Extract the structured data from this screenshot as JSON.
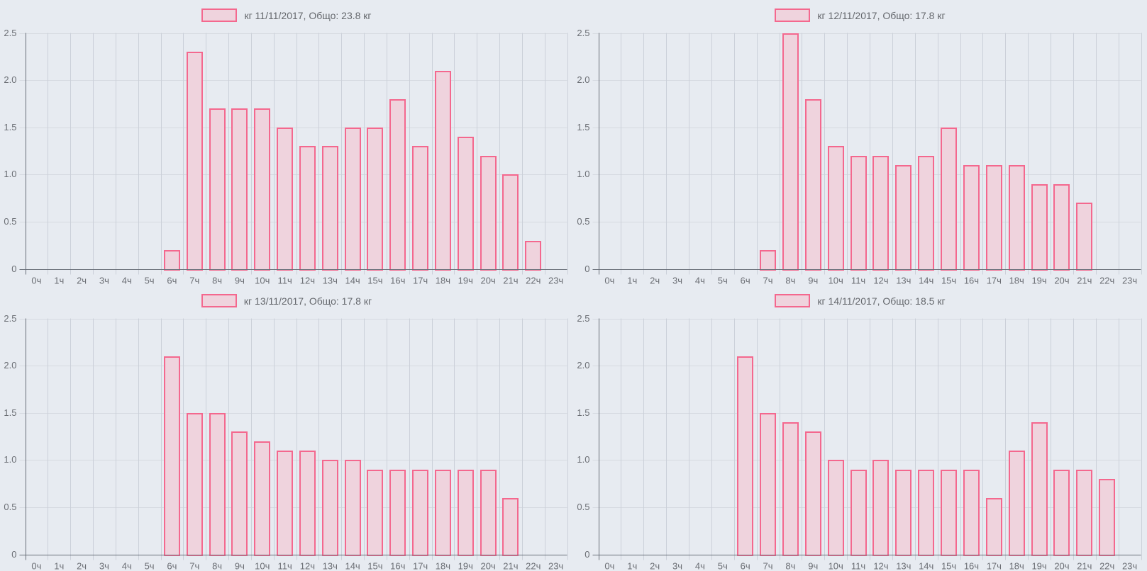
{
  "style": {
    "page_bg": "#e7ebf1",
    "grid_color_vertical": "#cbd0d9",
    "grid_color_horizontal": "#d6dae1",
    "axis_color": "#686e78",
    "tick_text_color": "#6b6e74",
    "legend_text_color": "#65686d",
    "bar_fill": "#efd3dd",
    "bar_border": "#f4688e"
  },
  "axes": {
    "categories": [
      "0ч",
      "1ч",
      "2ч",
      "3ч",
      "4ч",
      "5ч",
      "6ч",
      "7ч",
      "8ч",
      "9ч",
      "10ч",
      "11ч",
      "12ч",
      "13ч",
      "14ч",
      "15ч",
      "16ч",
      "17ч",
      "18ч",
      "19ч",
      "20ч",
      "21ч",
      "22ч",
      "23ч"
    ],
    "yticks": [
      "0",
      "0.5",
      "1.0",
      "1.5",
      "2.0",
      "2.5"
    ],
    "ylim": [
      0,
      2.5
    ]
  },
  "chart_data": [
    {
      "type": "bar",
      "legend": "кг 11/11/2017, Общо: 23.8 кг",
      "unit": "кг",
      "date": "11/11/2017",
      "total_kg": 23.8,
      "categories": [
        "0ч",
        "1ч",
        "2ч",
        "3ч",
        "4ч",
        "5ч",
        "6ч",
        "7ч",
        "8ч",
        "9ч",
        "10ч",
        "11ч",
        "12ч",
        "13ч",
        "14ч",
        "15ч",
        "16ч",
        "17ч",
        "18ч",
        "19ч",
        "20ч",
        "21ч",
        "22ч",
        "23ч"
      ],
      "values": [
        0,
        0,
        0,
        0,
        0,
        0,
        0.2,
        2.3,
        1.7,
        1.7,
        1.7,
        1.5,
        1.3,
        1.3,
        1.5,
        1.5,
        1.8,
        1.3,
        2.1,
        1.4,
        1.2,
        1.0,
        0.3,
        0
      ],
      "ylim": [
        0,
        2.5
      ],
      "legend_position": "top",
      "grid": true
    },
    {
      "type": "bar",
      "legend": "кг 12/11/2017, Общо: 17.8 кг",
      "unit": "кг",
      "date": "12/11/2017",
      "total_kg": 17.8,
      "categories": [
        "0ч",
        "1ч",
        "2ч",
        "3ч",
        "4ч",
        "5ч",
        "6ч",
        "7ч",
        "8ч",
        "9ч",
        "10ч",
        "11ч",
        "12ч",
        "13ч",
        "14ч",
        "15ч",
        "16ч",
        "17ч",
        "18ч",
        "19ч",
        "20ч",
        "21ч",
        "22ч",
        "23ч"
      ],
      "values": [
        0,
        0,
        0,
        0,
        0,
        0,
        0,
        0.2,
        2.5,
        1.8,
        1.3,
        1.2,
        1.2,
        1.1,
        1.2,
        1.5,
        1.1,
        1.1,
        1.1,
        0.9,
        0.9,
        0.7,
        0,
        0
      ],
      "ylim": [
        0,
        2.5
      ],
      "legend_position": "top",
      "grid": true
    },
    {
      "type": "bar",
      "legend": "кг 13/11/2017, Общо: 17.8 кг",
      "unit": "кг",
      "date": "13/11/2017",
      "total_kg": 17.8,
      "categories": [
        "0ч",
        "1ч",
        "2ч",
        "3ч",
        "4ч",
        "5ч",
        "6ч",
        "7ч",
        "8ч",
        "9ч",
        "10ч",
        "11ч",
        "12ч",
        "13ч",
        "14ч",
        "15ч",
        "16ч",
        "17ч",
        "18ч",
        "19ч",
        "20ч",
        "21ч",
        "22ч",
        "23ч"
      ],
      "values": [
        0,
        0,
        0,
        0,
        0,
        0,
        2.1,
        1.5,
        1.5,
        1.3,
        1.2,
        1.1,
        1.1,
        1.0,
        1.0,
        0.9,
        0.9,
        0.9,
        0.9,
        0.9,
        0.9,
        0.6,
        0,
        0
      ],
      "ylim": [
        0,
        2.5
      ],
      "legend_position": "top",
      "grid": true
    },
    {
      "type": "bar",
      "legend": "кг 14/11/2017, Общо: 18.5 кг",
      "unit": "кг",
      "date": "14/11/2017",
      "total_kg": 18.5,
      "categories": [
        "0ч",
        "1ч",
        "2ч",
        "3ч",
        "4ч",
        "5ч",
        "6ч",
        "7ч",
        "8ч",
        "9ч",
        "10ч",
        "11ч",
        "12ч",
        "13ч",
        "14ч",
        "15ч",
        "16ч",
        "17ч",
        "18ч",
        "19ч",
        "20ч",
        "21ч",
        "22ч",
        "23ч"
      ],
      "values": [
        0,
        0,
        0,
        0,
        0,
        0,
        2.1,
        1.5,
        1.4,
        1.3,
        1.0,
        0.9,
        1.0,
        0.9,
        0.9,
        0.9,
        0.9,
        0.6,
        1.1,
        1.4,
        0.9,
        0.9,
        0.8,
        0
      ],
      "ylim": [
        0,
        2.5
      ],
      "legend_position": "top",
      "grid": true
    }
  ]
}
